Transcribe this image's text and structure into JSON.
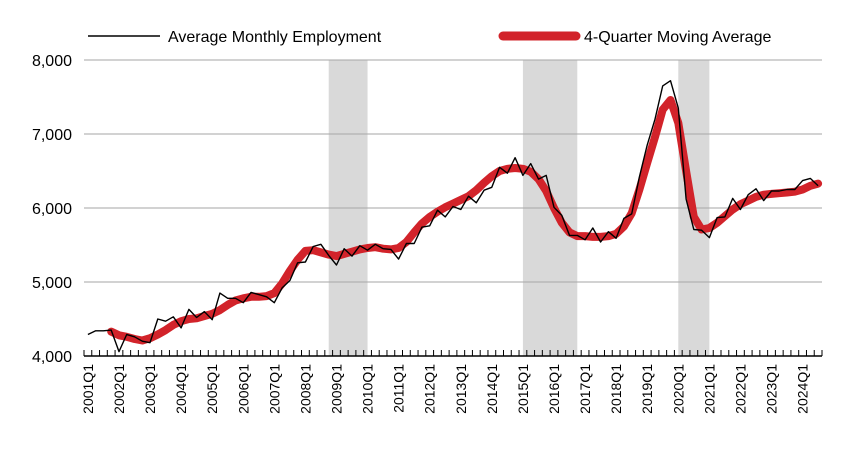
{
  "chart_data": {
    "type": "line",
    "title": "",
    "xlabel": "",
    "ylabel": "",
    "ylim": [
      4000,
      8000
    ],
    "yticks": [
      4000,
      5000,
      6000,
      7000,
      8000
    ],
    "ytick_labels": [
      "4,000",
      "5,000",
      "6,000",
      "7,000",
      "8,000"
    ],
    "xtick_labels": [
      "2001Q1",
      "2002Q1",
      "2003Q1",
      "2004Q1",
      "2005Q1",
      "2006Q1",
      "2007Q1",
      "2008Q1",
      "2009Q1",
      "2010Q1",
      "2011Q1",
      "2012Q1",
      "2013Q1",
      "2014Q1",
      "2015Q1",
      "2016Q1",
      "2017Q1",
      "2018Q1",
      "2019Q1",
      "2020Q1",
      "2021Q1",
      "2022Q1",
      "2023Q1",
      "2024Q1"
    ],
    "grid": true,
    "legend_position": "top",
    "shaded_periods": [
      {
        "start": "2008Q4",
        "end": "2010Q1"
      },
      {
        "start": "2015Q1",
        "end": "2016Q4"
      },
      {
        "start": "2020Q1",
        "end": "2021Q1"
      }
    ],
    "colors": {
      "actual": "#000000",
      "moving_average": "#d2232a",
      "shading": "#d9d9d9",
      "grid": "#a6a6a6"
    },
    "series": [
      {
        "name": "Average Monthly Employment",
        "values": [
          4290,
          4340,
          4340,
          4350,
          4060,
          4290,
          4260,
          4200,
          4180,
          4500,
          4470,
          4530,
          4380,
          4630,
          4520,
          4600,
          4490,
          4850,
          4780,
          4780,
          4720,
          4860,
          4830,
          4800,
          4720,
          4920,
          5020,
          5260,
          5270,
          5480,
          5510,
          5360,
          5230,
          5450,
          5350,
          5490,
          5430,
          5510,
          5450,
          5440,
          5310,
          5520,
          5520,
          5740,
          5760,
          5970,
          5880,
          6020,
          5980,
          6160,
          6070,
          6240,
          6280,
          6550,
          6470,
          6680,
          6440,
          6600,
          6390,
          6440,
          6010,
          5900,
          5630,
          5630,
          5570,
          5730,
          5540,
          5680,
          5590,
          5860,
          5920,
          6420,
          6850,
          7200,
          7650,
          7720,
          7350,
          6120,
          5710,
          5700,
          5600,
          5870,
          5880,
          6130,
          5980,
          6180,
          6260,
          6100,
          6230,
          6230,
          6250,
          6250,
          6370,
          6400,
          6300
        ]
      },
      {
        "name": "4-Quarter Moving Average",
        "values": [
          null,
          null,
          null,
          4330,
          4280,
          4260,
          4230,
          4210,
          4240,
          4290,
          4350,
          4420,
          4470,
          4500,
          4510,
          4540,
          4570,
          4620,
          4690,
          4750,
          4780,
          4800,
          4800,
          4810,
          4850,
          4980,
          5150,
          5300,
          5420,
          5430,
          5400,
          5370,
          5350,
          5380,
          5410,
          5440,
          5460,
          5470,
          5450,
          5440,
          5460,
          5540,
          5670,
          5790,
          5880,
          5950,
          6010,
          6060,
          6110,
          6160,
          6240,
          6340,
          6430,
          6500,
          6530,
          6540,
          6530,
          6490,
          6390,
          6230,
          6000,
          5800,
          5670,
          5620,
          5620,
          5610,
          5610,
          5620,
          5650,
          5750,
          5930,
          6250,
          6610,
          6960,
          7330,
          7460,
          7150,
          6500,
          5880,
          5710,
          5730,
          5800,
          5890,
          5980,
          6050,
          6100,
          6150,
          6180,
          6190,
          6200,
          6210,
          6220,
          6250,
          6300,
          6330
        ]
      }
    ]
  }
}
